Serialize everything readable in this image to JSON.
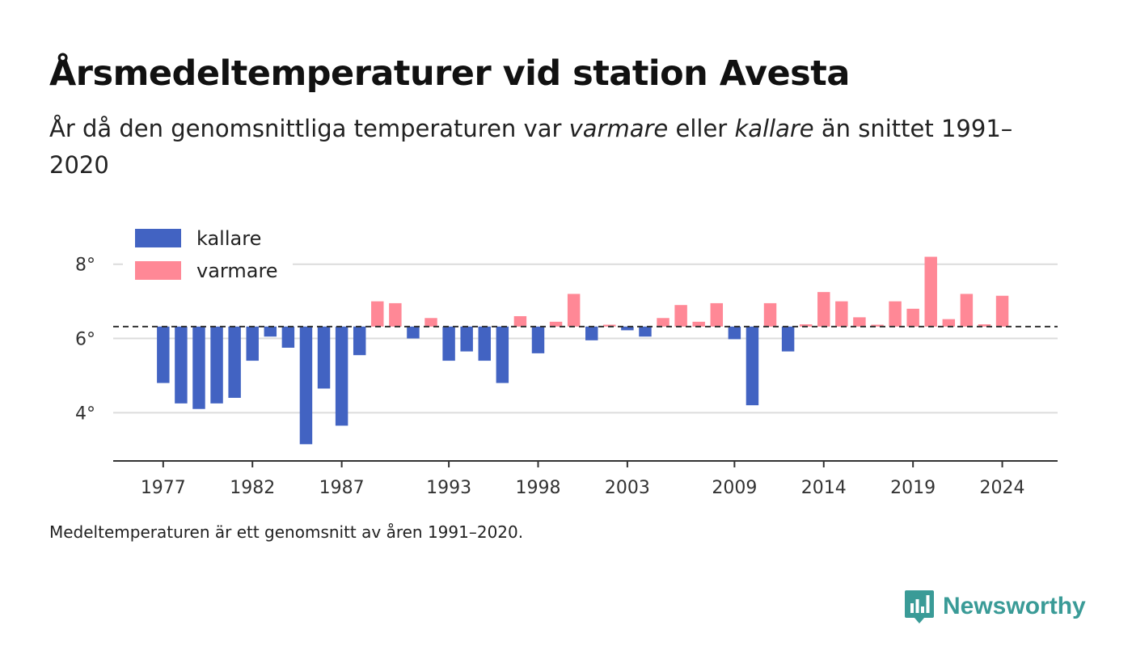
{
  "title": "Årsmedeltemperaturer vid station Avesta",
  "subtitle": {
    "part1": "År då den genomsnittliga temperaturen var ",
    "em1": "varmare",
    "part2": " eller ",
    "em2": "kallare",
    "part3": " än snittet 1991–2020"
  },
  "footnote": "Medeltemperaturen är ett genomsnitt av åren 1991–2020.",
  "brand": {
    "name": "Newsworthy",
    "logo_icon": "newsworthy-chart-bubble-icon",
    "color": "#3a9b97"
  },
  "colors": {
    "colder": "#4263c2",
    "warmer": "#ff8896",
    "reference_line": "#333333",
    "grid": "#dcdcdc",
    "axis": "#333333"
  },
  "chart_data": {
    "type": "bar",
    "baseline": 6.32,
    "ylim": [
      2.7,
      8.8
    ],
    "yticks": [
      4,
      6,
      8
    ],
    "ytick_labels": [
      "4°",
      "6°",
      "8°"
    ],
    "xlim": [
      1974.2,
      2027.1
    ],
    "xticks": [
      1977,
      1982,
      1987,
      1993,
      1998,
      2003,
      2009,
      2014,
      2019,
      2024
    ],
    "grid": true,
    "legend_position": "top-left",
    "series": [
      {
        "name": "kallare",
        "color": "#4263c2"
      },
      {
        "name": "varmare",
        "color": "#ff8896"
      }
    ],
    "years": [
      1977,
      1978,
      1979,
      1980,
      1981,
      1982,
      1983,
      1984,
      1985,
      1986,
      1987,
      1988,
      1989,
      1990,
      1991,
      1992,
      1993,
      1994,
      1995,
      1996,
      1997,
      1998,
      1999,
      2000,
      2001,
      2002,
      2003,
      2004,
      2005,
      2006,
      2007,
      2008,
      2009,
      2010,
      2011,
      2012,
      2013,
      2014,
      2015,
      2016,
      2017,
      2018,
      2019,
      2020,
      2021,
      2022,
      2023,
      2024
    ],
    "values": [
      4.8,
      4.25,
      4.1,
      4.25,
      4.4,
      5.4,
      6.05,
      5.75,
      3.15,
      4.65,
      3.65,
      5.55,
      7.0,
      6.95,
      6.0,
      6.55,
      5.4,
      5.65,
      5.4,
      4.8,
      6.6,
      5.6,
      6.45,
      7.2,
      5.95,
      6.37,
      6.22,
      6.05,
      6.55,
      6.9,
      6.45,
      6.95,
      5.98,
      4.2,
      6.95,
      5.65,
      6.38,
      7.25,
      7.0,
      6.57,
      6.37,
      7.0,
      6.8,
      8.2,
      6.52,
      7.2,
      6.38,
      7.15
    ]
  }
}
